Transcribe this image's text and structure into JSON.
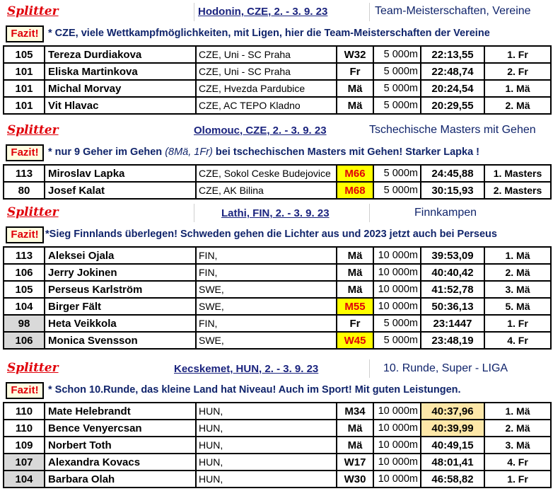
{
  "sections": [
    {
      "splitter": "Splitter",
      "event": "Hodonin, CZE, 2. - 3. 9. 23",
      "title": "Team-Meisterschaften, Vereine",
      "fazit_label": "Fazit!",
      "fazit": "* CZE, viele Wettkampfmöglichkeiten, mit Ligen, hier die Team-Meisterschaften der Vereine",
      "rows": [
        {
          "no": "105",
          "name": "Tereza Durdiakova",
          "club": "CZE, Uni - SC Praha",
          "cat": "W32",
          "dist": "5 000m",
          "time": "22:13,55",
          "rank": "1. Fr"
        },
        {
          "no": "101",
          "name": "Eliska Martinkova",
          "club": "CZE, Uni - SC Praha",
          "cat": "Fr",
          "dist": "5 000m",
          "time": "22:48,74",
          "rank": "2. Fr"
        },
        {
          "no": "101",
          "name": "Michal Morvay",
          "club": "CZE, Hvezda Pardubice",
          "cat": "Mä",
          "dist": "5 000m",
          "time": "20:24,54",
          "rank": "1. Mä"
        },
        {
          "no": "101",
          "name": "Vit Hlavac",
          "club": "CZE, AC TEPO Kladno",
          "cat": "Mä",
          "dist": "5 000m",
          "time": "20:29,55",
          "rank": "2. Mä"
        }
      ]
    },
    {
      "splitter": "Splitter",
      "event": "Olomouc, CZE, 2. - 3. 9. 23",
      "title": "Tschechische Masters mit Gehen",
      "fazit_label": "Fazit!",
      "fazit_pre": "* nur 9 Geher im Gehen ",
      "fazit_it": "(8Mä, 1Fr)",
      "fazit_post": "  bei tschechischen Masters mit Gehen! Starker Lapka !",
      "rows": [
        {
          "no": "113",
          "name": "Miroslav Lapka",
          "club": "CZE, Sokol Ceske Budejovice",
          "cat": "M66",
          "dist": "5 000m",
          "time": "24:45,88",
          "rank": "1. Masters"
        },
        {
          "no": "80",
          "name": "Josef Kalat",
          "club": "CZE, AK Bilina",
          "cat": "M68",
          "dist": "5 000m",
          "time": "30:15,93",
          "rank": "2. Masters"
        }
      ]
    },
    {
      "splitter": "Splitter",
      "event": "Lathi, FIN, 2. - 3. 9. 23",
      "title": "Finnkampen",
      "fazit_label": "Fazit!",
      "fazit": "*Sieg Finnlands überlegen! Schweden gehen die Lichter aus und 2023 jetzt auch bei Perseus",
      "rows": [
        {
          "no": "113",
          "name": "Aleksei Ojala",
          "club": "FIN,",
          "cat": "Mä",
          "dist": "10 000m",
          "time": "39:53,09",
          "rank": "1. Mä"
        },
        {
          "no": "106",
          "name": "Jerry Jokinen",
          "club": "FIN,",
          "cat": "Mä",
          "dist": "10 000m",
          "time": "40:40,42",
          "rank": "2. Mä"
        },
        {
          "no": "105",
          "name": "Perseus Karlström",
          "club": "SWE,",
          "cat": "Mä",
          "dist": "10 000m",
          "time": "41:52,78",
          "rank": "3. Mä"
        },
        {
          "no": "104",
          "name": "Birger Fält",
          "club": "SWE,",
          "cat": "M55",
          "dist": "10 000m",
          "time": "50:36,13",
          "rank": "5. Mä"
        },
        {
          "no": "98",
          "name": "Heta Veikkola",
          "club": "FIN,",
          "cat": "Fr",
          "dist": "5 000m",
          "time": "23:1447",
          "rank": "1. Fr"
        },
        {
          "no": "106",
          "name": "Monica Svensson",
          "club": "SWE,",
          "cat": "W45",
          "dist": "5 000m",
          "time": "23:48,19",
          "rank": "4. Fr"
        }
      ]
    },
    {
      "splitter": "Splitter",
      "event": "Kecskemet, HUN, 2. - 3. 9. 23",
      "title": "10. Runde, Super - LIGA",
      "fazit_label": "Fazit!",
      "fazit": "* Schon 10.Runde, das kleine Land hat Niveau! Auch im Sport! Mit guten Leistungen.",
      "rows": [
        {
          "no": "110",
          "name": "Mate Helebrandt",
          "club": "HUN,",
          "cat": "M34",
          "dist": "10 000m",
          "time": "40:37,96",
          "rank": "1. Mä"
        },
        {
          "no": "110",
          "name": "Bence Venyercsan",
          "club": "HUN,",
          "cat": "Mä",
          "dist": "10 000m",
          "time": "40:39,99",
          "rank": "2. Mä"
        },
        {
          "no": "109",
          "name": "Norbert Toth",
          "club": "HUN,",
          "cat": "Mä",
          "dist": "10 000m",
          "time": "40:49,15",
          "rank": "3. Mä"
        },
        {
          "no": "107",
          "name": "Alexandra Kovacs",
          "club": "HUN,",
          "cat": "W17",
          "dist": "10 000m",
          "time": "48:01,41",
          "rank": "4. Fr"
        },
        {
          "no": "104",
          "name": "Barbara Olah",
          "club": "HUN,",
          "cat": "W30",
          "dist": "10 000m",
          "time": "46:58,82",
          "rank": "1. Fr"
        }
      ]
    }
  ],
  "colors": {
    "splitter": "#e0000a",
    "event": "#1a237e",
    "fazit_text": "#10246b",
    "highlight_cat": "#ffff00",
    "highlight_time": "#fde7a8",
    "grey_no": "#d9d9d9"
  }
}
